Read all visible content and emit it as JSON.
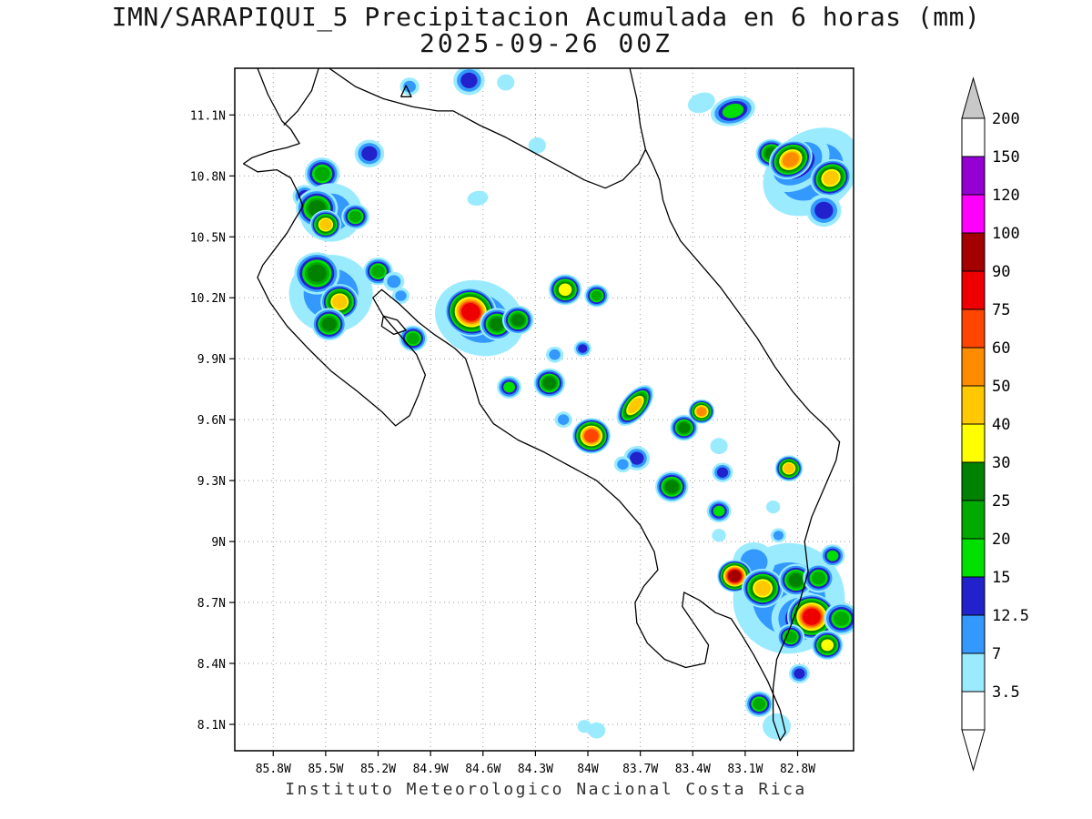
{
  "title": {
    "line1": "IMN/SARAPIQUI_5 Precipitacion Acumulada en 6 horas (mm)",
    "line2": "2025-09-26 00Z"
  },
  "caption": "Instituto Meteorologico Nacional Costa Rica",
  "chart_data": {
    "type": "heatmap",
    "title": "IMN/SARAPIQUI_5 Precipitacion Acumulada en 6 horas (mm) 2025-09-26 00Z",
    "units": "mm",
    "region": "Costa Rica",
    "grid": true,
    "lon_range_w": [
      86.02,
      82.48
    ],
    "lat_range": [
      7.97,
      11.33
    ],
    "lon_ticks": {
      "labels": [
        "85.8W",
        "85.5W",
        "85.2W",
        "84.9W",
        "84.6W",
        "84.3W",
        "84W",
        "83.7W",
        "83.4W",
        "83.1W",
        "82.8W"
      ],
      "values": [
        85.8,
        85.5,
        85.2,
        84.9,
        84.6,
        84.3,
        84.0,
        83.7,
        83.4,
        83.1,
        82.8
      ]
    },
    "lat_ticks": {
      "labels": [
        "11.1N",
        "10.8N",
        "10.5N",
        "10.2N",
        "9.9N",
        "9.6N",
        "9.3N",
        "9N",
        "8.7N",
        "8.4N",
        "8.1N"
      ],
      "values": [
        11.1,
        10.8,
        10.5,
        10.2,
        9.9,
        9.6,
        9.3,
        9.0,
        8.7,
        8.4,
        8.1
      ]
    },
    "palette": {
      "thresholds": [
        3.5,
        7,
        12.5,
        15,
        20,
        25,
        30,
        40,
        50,
        60,
        75,
        90,
        100,
        120,
        150,
        200
      ],
      "colors": [
        "#9BEBFF",
        "#3399FF",
        "#2222CC",
        "#00E000",
        "#00AA00",
        "#008200",
        "#FFFF00",
        "#FFC800",
        "#FF8C00",
        "#FF4500",
        "#EE0000",
        "#A40000",
        "#FF00FF",
        "#9400D3",
        "#FFFFFF",
        "#C8C8C8"
      ],
      "labels_top_to_bottom": [
        "200",
        "150",
        "120",
        "100",
        "90",
        "75",
        "60",
        "50",
        "40",
        "30",
        "25",
        "20",
        "15",
        "12.5",
        "7",
        "3.5"
      ],
      "below_color": "#FFFFFF",
      "grid_color": "#999999",
      "coast_color": "#000000"
    },
    "coastline": [
      [
        [
          85.89,
          11.33
        ],
        [
          85.83,
          11.2
        ],
        [
          85.75,
          11.07
        ],
        [
          85.7,
          11.03
        ],
        [
          85.65,
          10.96
        ],
        [
          85.72,
          10.94
        ],
        [
          85.82,
          10.92
        ],
        [
          85.92,
          10.89
        ],
        [
          85.97,
          10.86
        ],
        [
          85.89,
          10.82
        ],
        [
          85.78,
          10.83
        ],
        [
          85.7,
          10.79
        ],
        [
          85.66,
          10.72
        ],
        [
          85.63,
          10.65
        ],
        [
          85.68,
          10.58
        ],
        [
          85.72,
          10.52
        ],
        [
          85.79,
          10.44
        ],
        [
          85.86,
          10.36
        ],
        [
          85.89,
          10.3
        ],
        [
          85.82,
          10.18
        ],
        [
          85.72,
          10.06
        ],
        [
          85.6,
          9.95
        ],
        [
          85.47,
          9.84
        ],
        [
          85.32,
          9.74
        ],
        [
          85.18,
          9.64
        ],
        [
          85.1,
          9.57
        ],
        [
          85.02,
          9.62
        ],
        [
          84.97,
          9.72
        ],
        [
          84.93,
          9.82
        ],
        [
          84.98,
          9.92
        ],
        [
          85.07,
          10.01
        ],
        [
          85.17,
          10.11
        ],
        [
          85.23,
          10.2
        ],
        [
          85.18,
          10.24
        ],
        [
          85.08,
          10.17
        ],
        [
          84.97,
          10.08
        ],
        [
          84.88,
          10.02
        ],
        [
          84.81,
          9.98
        ],
        [
          84.76,
          9.95
        ],
        [
          84.7,
          9.9
        ],
        [
          84.66,
          9.8
        ],
        [
          84.62,
          9.68
        ],
        [
          84.54,
          9.58
        ],
        [
          84.4,
          9.5
        ],
        [
          84.25,
          9.44
        ],
        [
          84.1,
          9.37
        ],
        [
          83.95,
          9.3
        ],
        [
          83.82,
          9.2
        ],
        [
          83.7,
          9.08
        ],
        [
          83.62,
          8.95
        ],
        [
          83.6,
          8.86
        ],
        [
          83.68,
          8.78
        ],
        [
          83.73,
          8.7
        ],
        [
          83.72,
          8.6
        ],
        [
          83.66,
          8.5
        ],
        [
          83.56,
          8.42
        ],
        [
          83.44,
          8.38
        ],
        [
          83.33,
          8.4
        ],
        [
          83.31,
          8.49
        ],
        [
          83.38,
          8.58
        ],
        [
          83.46,
          8.68
        ],
        [
          83.45,
          8.75
        ],
        [
          83.36,
          8.71
        ],
        [
          83.27,
          8.65
        ],
        [
          83.18,
          8.62
        ],
        [
          83.12,
          8.54
        ],
        [
          83.05,
          8.44
        ],
        [
          82.97,
          8.31
        ],
        [
          82.9,
          8.17
        ],
        [
          82.87,
          8.06
        ],
        [
          82.9,
          8.02
        ],
        [
          82.94,
          8.12
        ],
        [
          82.94,
          8.28
        ],
        [
          82.92,
          8.42
        ],
        [
          82.85,
          8.56
        ],
        [
          82.79,
          8.7
        ],
        [
          82.74,
          8.85
        ],
        [
          82.76,
          9.0
        ],
        [
          82.72,
          9.12
        ],
        [
          82.64,
          9.28
        ],
        [
          82.58,
          9.4
        ],
        [
          82.56,
          9.49
        ],
        [
          82.63,
          9.56
        ],
        [
          82.73,
          9.64
        ],
        [
          82.83,
          9.74
        ],
        [
          82.93,
          9.86
        ],
        [
          83.03,
          10.0
        ],
        [
          83.13,
          10.12
        ],
        [
          83.24,
          10.25
        ],
        [
          83.36,
          10.37
        ],
        [
          83.47,
          10.48
        ],
        [
          83.53,
          10.58
        ],
        [
          83.57,
          10.68
        ],
        [
          83.59,
          10.78
        ],
        [
          83.63,
          10.86
        ],
        [
          83.67,
          10.93
        ]
      ],
      [
        [
          85.74,
          11.05
        ],
        [
          85.66,
          11.12
        ],
        [
          85.58,
          11.22
        ],
        [
          85.54,
          11.33
        ]
      ],
      [
        [
          85.48,
          11.33
        ],
        [
          85.33,
          11.24
        ],
        [
          85.17,
          11.18
        ],
        [
          85.0,
          11.14
        ],
        [
          84.86,
          11.12
        ],
        [
          84.77,
          11.12
        ],
        [
          84.62,
          11.05
        ],
        [
          84.47,
          10.99
        ],
        [
          84.32,
          10.92
        ],
        [
          84.17,
          10.85
        ],
        [
          84.02,
          10.78
        ],
        [
          83.9,
          10.74
        ],
        [
          83.8,
          10.78
        ],
        [
          83.71,
          10.86
        ],
        [
          83.67,
          10.93
        ],
        [
          83.7,
          11.05
        ],
        [
          83.72,
          11.18
        ],
        [
          83.76,
          11.33
        ]
      ],
      [
        [
          85.07,
          11.19
        ],
        [
          85.01,
          11.19
        ],
        [
          85.04,
          11.245
        ],
        [
          85.07,
          11.19
        ]
      ],
      [
        [
          85.17,
          10.11
        ],
        [
          85.09,
          10.09
        ],
        [
          85.04,
          10.04
        ],
        [
          85.11,
          10.02
        ],
        [
          85.18,
          10.06
        ],
        [
          85.17,
          10.11
        ]
      ]
    ],
    "cells": [
      {
        "lon": 85.02,
        "lat": 11.24,
        "peak": 7,
        "r": 0.055
      },
      {
        "lon": 84.68,
        "lat": 11.27,
        "peak": 12.5,
        "r": 0.09
      },
      {
        "lon": 84.47,
        "lat": 11.26,
        "peak": 3.5,
        "r": 0.05
      },
      {
        "lon": 84.29,
        "lat": 10.95,
        "peak": 3.5,
        "r": 0.05
      },
      {
        "lon": 83.35,
        "lat": 11.16,
        "peak": 3.5,
        "r": 0.08,
        "aspect": 0.6,
        "rot": -20
      },
      {
        "lon": 83.17,
        "lat": 11.12,
        "peak": 15,
        "r": 0.13,
        "aspect": 0.55,
        "rot": -15
      },
      {
        "lon": 82.72,
        "lat": 10.82,
        "peak": 7,
        "r": 0.3,
        "aspect": 0.65,
        "rot": -35
      },
      {
        "lon": 82.8,
        "lat": 10.86,
        "peak": 12.5,
        "r": 0.2,
        "aspect": 0.6,
        "rot": -35
      },
      {
        "lon": 82.95,
        "lat": 10.91,
        "peak": 25,
        "r": 0.09
      },
      {
        "lon": 82.84,
        "lat": 10.88,
        "peak": 50,
        "r": 0.13,
        "aspect": 0.7,
        "rot": -30
      },
      {
        "lon": 82.61,
        "lat": 10.79,
        "peak": 40,
        "r": 0.12,
        "aspect": 0.75,
        "rot": -25
      },
      {
        "lon": 82.65,
        "lat": 10.63,
        "peak": 12.5,
        "r": 0.1
      },
      {
        "lon": 85.25,
        "lat": 10.91,
        "peak": 12.5,
        "r": 0.085
      },
      {
        "lon": 85.52,
        "lat": 10.81,
        "peak": 20,
        "r": 0.1
      },
      {
        "lon": 85.62,
        "lat": 10.7,
        "peak": 12.5,
        "r": 0.07
      },
      {
        "lon": 85.47,
        "lat": 10.62,
        "peak": 7,
        "r": 0.18
      },
      {
        "lon": 85.55,
        "lat": 10.64,
        "peak": 25,
        "r": 0.12
      },
      {
        "lon": 85.5,
        "lat": 10.56,
        "peak": 40,
        "r": 0.09
      },
      {
        "lon": 85.33,
        "lat": 10.6,
        "peak": 20,
        "r": 0.08
      },
      {
        "lon": 85.47,
        "lat": 10.22,
        "peak": 7,
        "r": 0.24
      },
      {
        "lon": 85.55,
        "lat": 10.32,
        "peak": 25,
        "r": 0.13
      },
      {
        "lon": 85.42,
        "lat": 10.18,
        "peak": 40,
        "r": 0.11
      },
      {
        "lon": 85.48,
        "lat": 10.07,
        "peak": 25,
        "r": 0.1
      },
      {
        "lon": 85.2,
        "lat": 10.33,
        "peak": 20,
        "r": 0.085
      },
      {
        "lon": 85.11,
        "lat": 10.28,
        "peak": 7,
        "r": 0.06
      },
      {
        "lon": 85.07,
        "lat": 10.21,
        "peak": 7,
        "r": 0.05
      },
      {
        "lon": 85.0,
        "lat": 10.0,
        "peak": 20,
        "r": 0.08
      },
      {
        "lon": 84.62,
        "lat": 10.1,
        "peak": 7,
        "r": 0.26,
        "aspect": 0.7,
        "rot": 20
      },
      {
        "lon": 84.67,
        "lat": 10.13,
        "peak": 75,
        "r": 0.15,
        "aspect": 0.8,
        "rot": 20
      },
      {
        "lon": 84.52,
        "lat": 10.07,
        "peak": 25,
        "r": 0.1
      },
      {
        "lon": 84.4,
        "lat": 10.09,
        "peak": 25,
        "r": 0.09
      },
      {
        "lon": 84.63,
        "lat": 10.69,
        "peak": 3.5,
        "r": 0.06,
        "aspect": 0.6,
        "rot": -10
      },
      {
        "lon": 84.13,
        "lat": 10.24,
        "peak": 30,
        "r": 0.095
      },
      {
        "lon": 83.95,
        "lat": 10.21,
        "peak": 20,
        "r": 0.07
      },
      {
        "lon": 84.19,
        "lat": 9.92,
        "peak": 7,
        "r": 0.05
      },
      {
        "lon": 84.03,
        "lat": 9.95,
        "peak": 12.5,
        "r": 0.05
      },
      {
        "lon": 84.22,
        "lat": 9.78,
        "peak": 25,
        "r": 0.09
      },
      {
        "lon": 84.45,
        "lat": 9.76,
        "peak": 15,
        "r": 0.07
      },
      {
        "lon": 84.14,
        "lat": 9.6,
        "peak": 7,
        "r": 0.05
      },
      {
        "lon": 83.98,
        "lat": 9.52,
        "peak": 60,
        "r": 0.11
      },
      {
        "lon": 83.73,
        "lat": 9.67,
        "peak": 40,
        "r": 0.14,
        "aspect": 0.45,
        "rot": -50
      },
      {
        "lon": 83.45,
        "lat": 9.56,
        "peak": 25,
        "r": 0.08
      },
      {
        "lon": 83.35,
        "lat": 9.64,
        "peak": 50,
        "r": 0.075
      },
      {
        "lon": 83.72,
        "lat": 9.41,
        "peak": 12.5,
        "r": 0.075
      },
      {
        "lon": 83.8,
        "lat": 9.38,
        "peak": 7,
        "r": 0.05
      },
      {
        "lon": 83.52,
        "lat": 9.27,
        "peak": 25,
        "r": 0.095
      },
      {
        "lon": 83.25,
        "lat": 9.47,
        "peak": 3.5,
        "r": 0.05
      },
      {
        "lon": 83.23,
        "lat": 9.34,
        "peak": 12.5,
        "r": 0.06
      },
      {
        "lon": 82.85,
        "lat": 9.36,
        "peak": 40,
        "r": 0.08
      },
      {
        "lon": 83.25,
        "lat": 9.15,
        "peak": 15,
        "r": 0.07
      },
      {
        "lon": 82.94,
        "lat": 9.17,
        "peak": 3.5,
        "r": 0.04
      },
      {
        "lon": 82.91,
        "lat": 9.03,
        "peak": 7,
        "r": 0.045
      },
      {
        "lon": 83.25,
        "lat": 9.03,
        "peak": 3.5,
        "r": 0.04
      },
      {
        "lon": 82.85,
        "lat": 8.72,
        "peak": 7,
        "r": 0.32,
        "aspect": 0.85,
        "rot": -20
      },
      {
        "lon": 82.78,
        "lat": 8.62,
        "peak": 12.5,
        "r": 0.17
      },
      {
        "lon": 83.05,
        "lat": 8.9,
        "peak": 7,
        "r": 0.12
      },
      {
        "lon": 83.16,
        "lat": 8.83,
        "peak": 90,
        "r": 0.1
      },
      {
        "lon": 83.0,
        "lat": 8.77,
        "peak": 40,
        "r": 0.12
      },
      {
        "lon": 82.81,
        "lat": 8.81,
        "peak": 25,
        "r": 0.1
      },
      {
        "lon": 82.68,
        "lat": 8.82,
        "peak": 20,
        "r": 0.09
      },
      {
        "lon": 82.72,
        "lat": 8.63,
        "peak": 75,
        "r": 0.14
      },
      {
        "lon": 82.55,
        "lat": 8.62,
        "peak": 20,
        "r": 0.1
      },
      {
        "lon": 82.63,
        "lat": 8.49,
        "peak": 30,
        "r": 0.09
      },
      {
        "lon": 82.84,
        "lat": 8.53,
        "peak": 20,
        "r": 0.08
      },
      {
        "lon": 82.6,
        "lat": 8.93,
        "peak": 15,
        "r": 0.07
      },
      {
        "lon": 82.79,
        "lat": 8.35,
        "peak": 12.5,
        "r": 0.06
      },
      {
        "lon": 83.02,
        "lat": 8.2,
        "peak": 20,
        "r": 0.08
      },
      {
        "lon": 82.92,
        "lat": 8.09,
        "peak": 3.5,
        "r": 0.08
      },
      {
        "lon": 83.95,
        "lat": 8.07,
        "peak": 3.5,
        "r": 0.05
      },
      {
        "lon": 84.02,
        "lat": 8.09,
        "peak": 3.5,
        "r": 0.04
      }
    ]
  }
}
